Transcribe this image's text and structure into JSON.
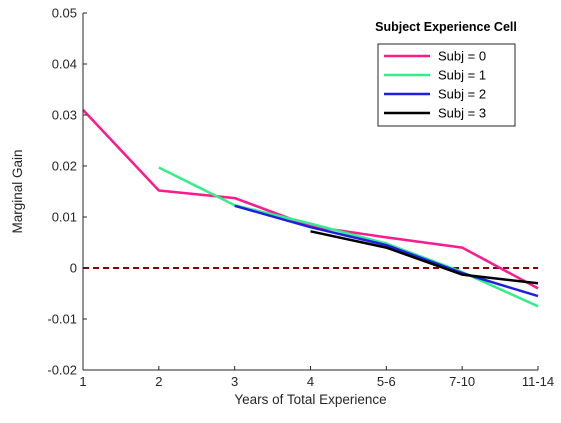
{
  "chart_data": {
    "type": "line",
    "title": "",
    "xlabel": "Years of Total Experience",
    "ylabel": "Marginal Gain",
    "categories": [
      "1",
      "2",
      "3",
      "4",
      "5-6",
      "7-10",
      "11-14"
    ],
    "ylim": [
      -0.02,
      0.05
    ],
    "yticks": [
      -0.02,
      -0.01,
      0,
      0.01,
      0.02,
      0.03,
      0.04,
      0.05
    ],
    "ytick_labels": [
      "-0.02",
      "-0.01",
      "0",
      "0.01",
      "0.02",
      "0.03",
      "0.04",
      "0.05"
    ],
    "grid": false,
    "legend": {
      "title": "Subject Experience Cell",
      "position": "top-right"
    },
    "reference_line": {
      "y": 0,
      "style": "dashed",
      "color": "#8B0000"
    },
    "series": [
      {
        "name": "Subj = 0",
        "color": "#FF1A8C",
        "values": [
          0.031,
          0.0152,
          0.0137,
          0.0082,
          0.006,
          0.004,
          -0.004
        ]
      },
      {
        "name": "Subj = 1",
        "color": "#33EE88",
        "values": [
          null,
          0.0197,
          0.0123,
          0.0087,
          0.0048,
          -0.0008,
          -0.0075
        ]
      },
      {
        "name": "Subj = 2",
        "color": "#1F1FE0",
        "values": [
          null,
          null,
          0.0122,
          0.008,
          0.0045,
          -0.001,
          -0.0055
        ]
      },
      {
        "name": "Subj = 3",
        "color": "#000000",
        "values": [
          null,
          null,
          null,
          0.0072,
          0.004,
          -0.0013,
          -0.003
        ]
      }
    ]
  }
}
